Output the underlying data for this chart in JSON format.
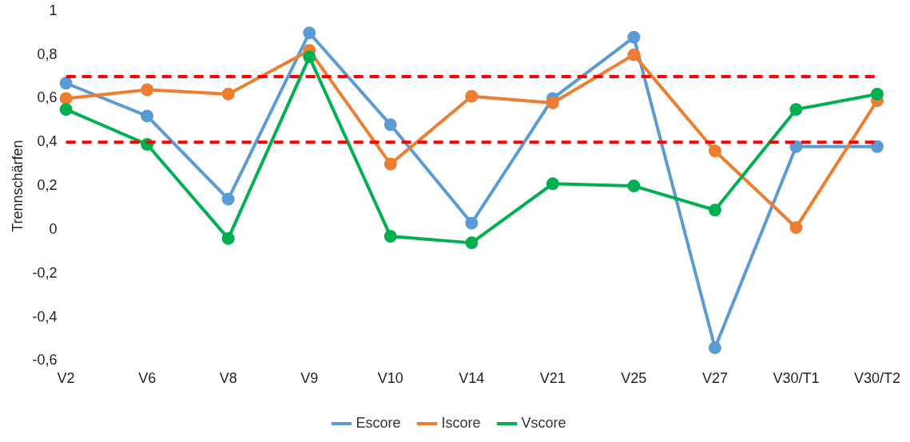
{
  "chart_data": {
    "type": "line",
    "ylabel": "Trennschärfen",
    "categories": [
      "V2",
      "V6",
      "V8",
      "V9",
      "V10",
      "V14",
      "V21",
      "V25",
      "V27",
      "V30/T1",
      "V30/T2"
    ],
    "series": [
      {
        "name": "Escore",
        "color": "#5b9bd5",
        "values": [
          0.67,
          0.52,
          0.14,
          0.9,
          0.48,
          0.03,
          0.6,
          0.88,
          -0.54,
          0.38,
          0.38
        ]
      },
      {
        "name": "Iscore",
        "color": "#ed7d31",
        "values": [
          0.6,
          0.64,
          0.62,
          0.82,
          0.3,
          0.61,
          0.58,
          0.8,
          0.36,
          0.01,
          0.59
        ]
      },
      {
        "name": "Vscore",
        "color": "#00b050",
        "values": [
          0.55,
          0.39,
          -0.04,
          0.79,
          -0.03,
          -0.06,
          0.21,
          0.2,
          0.09,
          0.55,
          0.62
        ]
      }
    ],
    "ylim": [
      -0.6,
      1
    ],
    "yticks": [
      {
        "value": -0.6,
        "label": "-0,6"
      },
      {
        "value": -0.4,
        "label": "-0,4"
      },
      {
        "value": -0.2,
        "label": "-0,2"
      },
      0,
      {
        "value": 0.2,
        "label": "0,2"
      },
      {
        "value": 0.4,
        "label": "0,4"
      },
      {
        "value": 0.6,
        "label": "0,6"
      },
      {
        "value": 0.8,
        "label": "0,8"
      },
      1
    ],
    "ref_lines": [
      {
        "axis": "y",
        "value": 0.7,
        "color": "#ff0000",
        "line_style": "dashed"
      },
      {
        "axis": "y",
        "value": 0.4,
        "color": "#ff0000",
        "line_style": "dashed"
      }
    ],
    "grid": false,
    "legend": "bottom",
    "marker": "circle",
    "line_style": "solid"
  }
}
